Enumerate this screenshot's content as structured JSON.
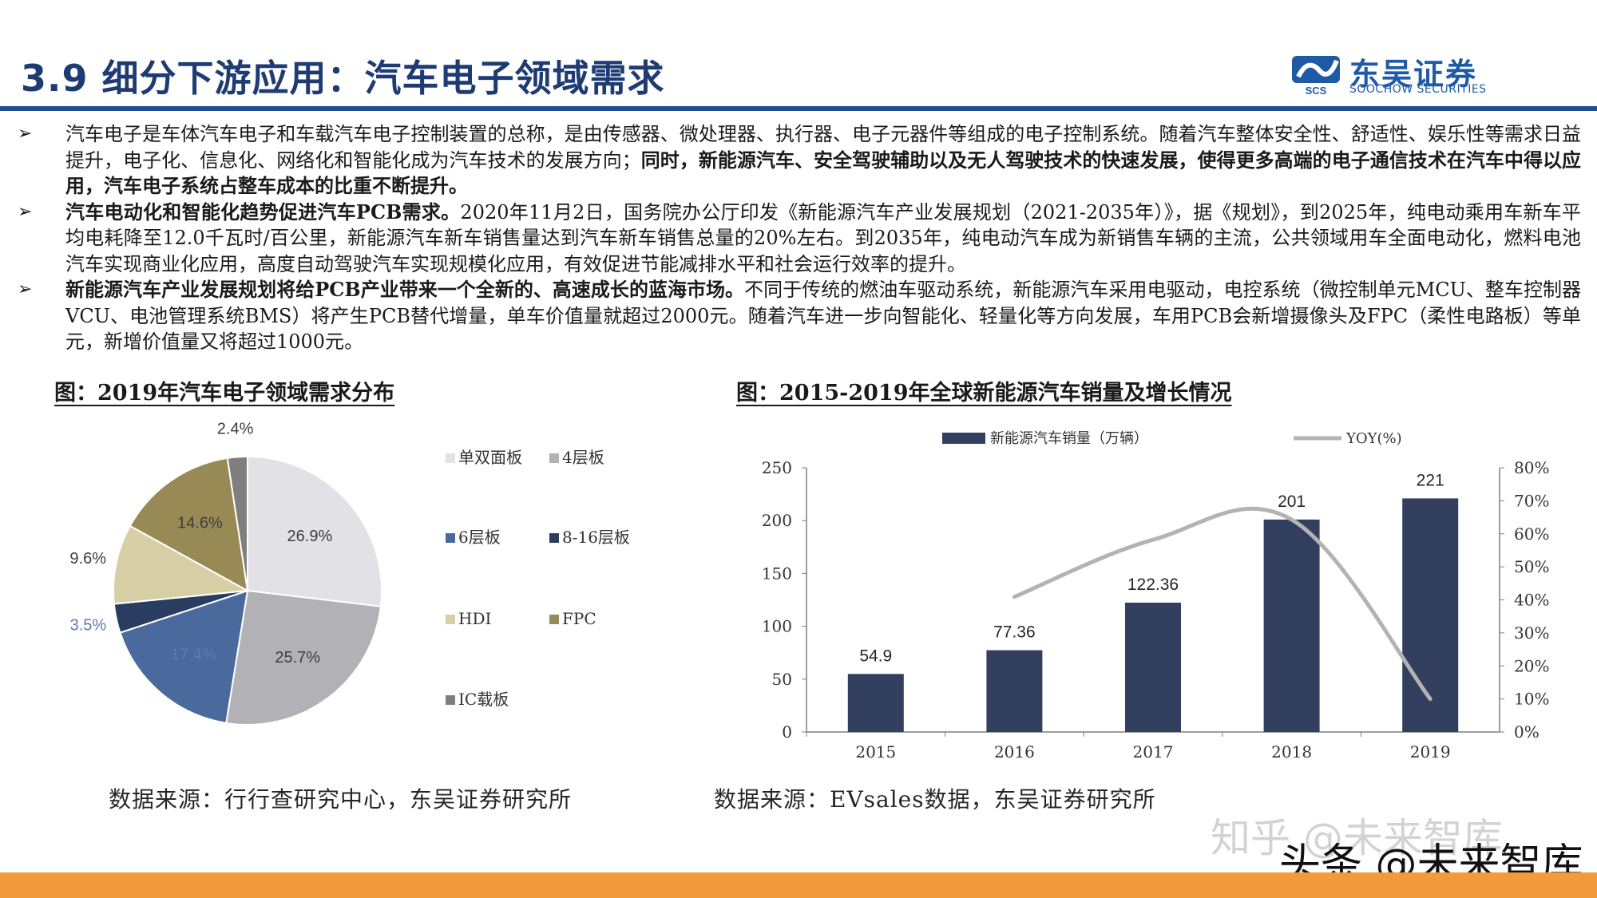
{
  "header": {
    "title": "3.9 细分下游应用：汽车电子领域需求",
    "logo_cn": "东吴证券",
    "logo_en": "SOOCHOW SECURITIES",
    "logo_mark_text": "SCS"
  },
  "bullets": [
    {
      "normal": "汽车电子是车体汽车电子和车载汽车电子控制装置的总称，是由传感器、微处理器、执行器、电子元器件等组成的电子控制系统。随着汽车整体安全性、舒适性、娱乐性等需求日益提升，电子化、信息化、网络化和智能化成为汽车技术的发展方向；",
      "bold": "同时，新能源汽车、安全驾驶辅助以及无人驾驶技术的快速发展，使得更多高端的电子通信技术在汽车中得以应用，汽车电子系统占整车成本的比重不断提升。"
    },
    {
      "bold": "汽车电动化和智能化趋势促进汽车PCB需求。",
      "normal": "2020年11月2日，国务院办公厅印发《新能源汽车产业发展规划（2021-2035年）》，据《规划》，到2025年，纯电动乘用车新车平均电耗降至12.0千瓦时/百公里，新能源汽车新车销售量达到汽车新车销售总量的20%左右。到2035年，纯电动汽车成为新销售车辆的主流，公共领域用车全面电动化，燃料电池汽车实现商业化应用，高度自动驾驶汽车实现规模化应用，有效促进节能减排水平和社会运行效率的提升。"
    },
    {
      "bold": "新能源汽车产业发展规划将给PCB产业带来一个全新的、高速成长的蓝海市场。",
      "normal": "不同于传统的燃油车驱动系统，新能源汽车采用电驱动，电控系统（微控制单元MCU、整车控制器VCU、电池管理系统BMS）将产生PCB替代增量，单车价值量就超过2000元。随着汽车进一步向智能化、轻量化等方向发展，车用PCB会新增摄像头及FPC（柔性电路板）等单元，新增价值量又将超过1000元。"
    }
  ],
  "figures": {
    "left_title": "图：2019年汽车电子领域需求分布",
    "right_title": "图：2015-2019年全球新能源汽车销量及增长情况",
    "left_source": "数据来源：行行查研究中心，东吴证券研究所",
    "right_source": "数据来源：EVsales数据，东吴证券研究所"
  },
  "chart_data": [
    {
      "type": "pie",
      "categories": [
        "单双面板",
        "4层板",
        "6层板",
        "8-16层板",
        "HDI",
        "FPC",
        "IC载板"
      ],
      "values": [
        26.9,
        25.7,
        17.4,
        3.5,
        9.6,
        14.6,
        2.4
      ],
      "labels": [
        "26.9%",
        "25.7%",
        "17.4%",
        "3.5%",
        "9.6%",
        "14.6%",
        "2.4%"
      ],
      "colors": [
        "#e2e2e6",
        "#b2b2b6",
        "#4a6a9e",
        "#2a3c60",
        "#d6cfa6",
        "#988a55",
        "#7f7f7f"
      ],
      "legend_position": "right"
    },
    {
      "type": "bar",
      "categories": [
        "2015",
        "2016",
        "2017",
        "2018",
        "2019"
      ],
      "series": [
        {
          "name": "新能源汽车销量（万辆）",
          "type": "bar",
          "axis": "left",
          "values": [
            54.9,
            77.36,
            122.36,
            201,
            221
          ],
          "data_labels": [
            "54.9",
            "77.36",
            "122.36",
            "201",
            "221"
          ],
          "color": "#333f5e"
        },
        {
          "name": "YOY(%)",
          "type": "line",
          "axis": "right",
          "values": [
            null,
            40.9,
            58.2,
            64.3,
            10.0
          ],
          "color": "#b3b3b3"
        }
      ],
      "ylim": [
        0,
        250
      ],
      "yticks": [
        "0",
        "50",
        "100",
        "150",
        "200",
        "250"
      ],
      "y2lim": [
        0,
        80
      ],
      "y2ticks": [
        "0%",
        "10%",
        "20%",
        "30%",
        "40%",
        "50%",
        "60%",
        "70%",
        "80%"
      ],
      "grid": false,
      "legend_position": "top"
    }
  ],
  "watermarks": {
    "zhihu": "知乎 @未来智库",
    "toutiao": "头条 @未来智库"
  }
}
